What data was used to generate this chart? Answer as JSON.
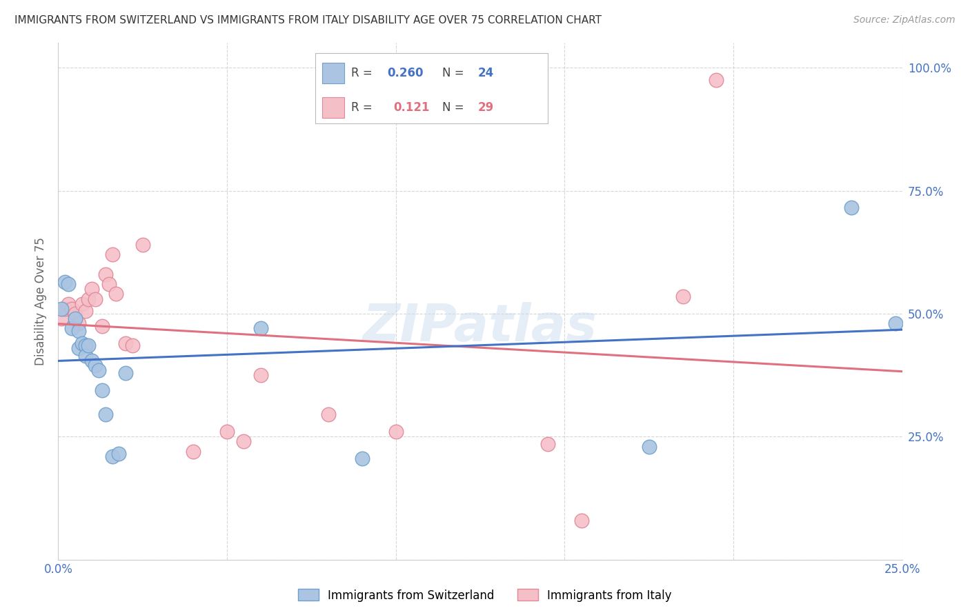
{
  "title": "IMMIGRANTS FROM SWITZERLAND VS IMMIGRANTS FROM ITALY DISABILITY AGE OVER 75 CORRELATION CHART",
  "source": "Source: ZipAtlas.com",
  "ylabel": "Disability Age Over 75",
  "xmin": 0.0,
  "xmax": 0.25,
  "ymin": 0.0,
  "ymax": 1.05,
  "ytick_values": [
    0.0,
    0.25,
    0.5,
    0.75,
    1.0
  ],
  "ytick_labels": [
    "",
    "25.0%",
    "50.0%",
    "75.0%",
    "100.0%"
  ],
  "xtick_values": [
    0.0,
    0.05,
    0.1,
    0.15,
    0.2,
    0.25
  ],
  "xtick_labels": [
    "0.0%",
    "",
    "",
    "",
    "",
    "25.0%"
  ],
  "switzerland_color": "#aac4e2",
  "switzerland_edge_color": "#6fa0cc",
  "italy_color": "#f5bfc8",
  "italy_edge_color": "#e08898",
  "switzerland_line_color": "#4472c4",
  "italy_line_color": "#e07080",
  "watermark": "ZIPatlas",
  "sw_label": "Immigrants from Switzerland",
  "it_label": "Immigrants from Italy",
  "legend_r_sw": "R = 0.260",
  "legend_n_sw": "N = 24",
  "legend_r_it": "R =  0.121",
  "legend_n_it": "N = 29",
  "r_sw_val": "0.260",
  "n_sw_val": "24",
  "r_it_val": "0.121",
  "n_it_val": "29",
  "switzerland_x": [
    0.001,
    0.002,
    0.003,
    0.004,
    0.005,
    0.006,
    0.006,
    0.007,
    0.008,
    0.008,
    0.009,
    0.01,
    0.011,
    0.012,
    0.013,
    0.014,
    0.016,
    0.018,
    0.02,
    0.06,
    0.09,
    0.175,
    0.235,
    0.248
  ],
  "switzerland_y": [
    0.51,
    0.565,
    0.56,
    0.47,
    0.49,
    0.465,
    0.43,
    0.44,
    0.435,
    0.415,
    0.435,
    0.405,
    0.395,
    0.385,
    0.345,
    0.295,
    0.21,
    0.215,
    0.38,
    0.47,
    0.205,
    0.23,
    0.715,
    0.48
  ],
  "italy_x": [
    0.001,
    0.002,
    0.003,
    0.004,
    0.005,
    0.006,
    0.007,
    0.008,
    0.009,
    0.01,
    0.011,
    0.013,
    0.014,
    0.015,
    0.016,
    0.017,
    0.02,
    0.022,
    0.025,
    0.04,
    0.05,
    0.055,
    0.06,
    0.08,
    0.1,
    0.145,
    0.155,
    0.185,
    0.195
  ],
  "italy_y": [
    0.49,
    0.51,
    0.52,
    0.51,
    0.5,
    0.48,
    0.52,
    0.505,
    0.53,
    0.55,
    0.53,
    0.475,
    0.58,
    0.56,
    0.62,
    0.54,
    0.44,
    0.435,
    0.64,
    0.22,
    0.26,
    0.24,
    0.375,
    0.295,
    0.26,
    0.235,
    0.08,
    0.535,
    0.975
  ],
  "grid_color": "#cccccc",
  "background_color": "#ffffff",
  "tick_color": "#4472c4",
  "label_color": "#666666"
}
